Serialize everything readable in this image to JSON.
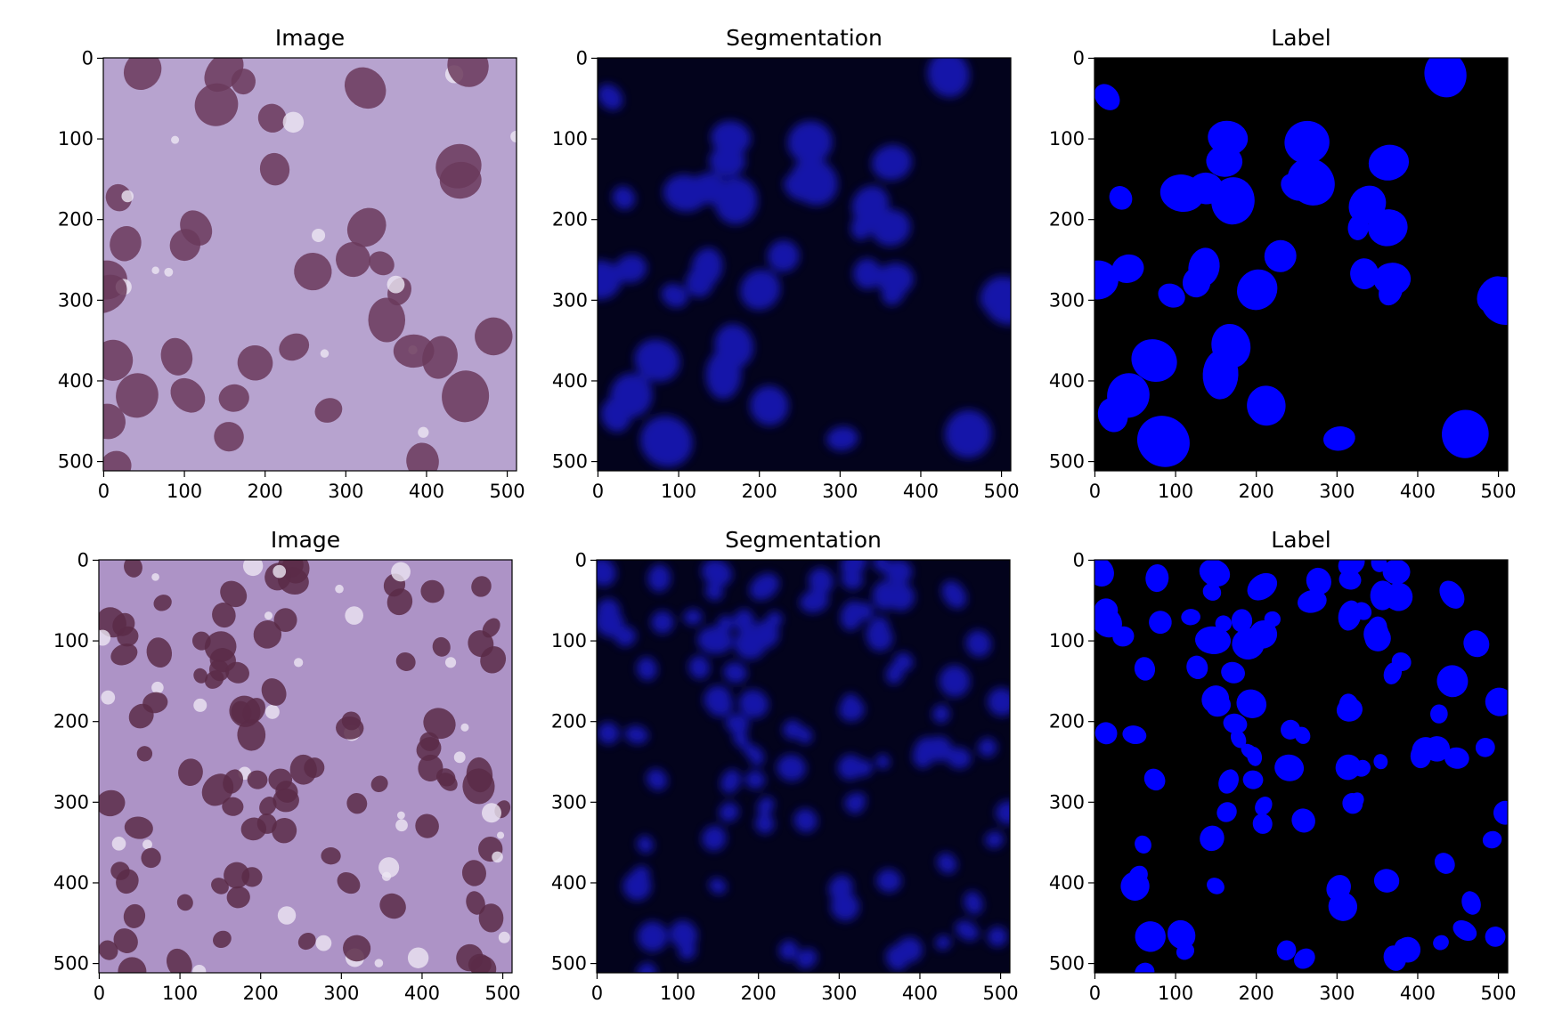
{
  "chart_data": [
    {
      "type": "image",
      "title": "Image",
      "background": "#b7a3cf",
      "color": "#6b3a5c",
      "xlim": [
        -0.5,
        511.5
      ],
      "ylim": [
        511.5,
        -0.5
      ],
      "xticks": [
        0,
        100,
        200,
        300,
        400,
        500
      ],
      "yticks": [
        0,
        100,
        200,
        300,
        400,
        500
      ]
    },
    {
      "type": "image",
      "title": "Segmentation",
      "background": "#03031c",
      "color": "#1a1ad8",
      "xlim": [
        -0.5,
        511.5
      ],
      "ylim": [
        511.5,
        -0.5
      ],
      "xticks": [
        0,
        100,
        200,
        300,
        400,
        500
      ],
      "yticks": [
        0,
        100,
        200,
        300,
        400,
        500
      ]
    },
    {
      "type": "image",
      "title": "Label",
      "background": "#000000",
      "color": "#0000ff",
      "xlim": [
        -0.5,
        511.5
      ],
      "ylim": [
        511.5,
        -0.5
      ],
      "xticks": [
        0,
        100,
        200,
        300,
        400,
        500
      ],
      "yticks": [
        0,
        100,
        200,
        300,
        400,
        500
      ]
    },
    {
      "type": "image",
      "title": "Image",
      "background": "#ad93c6",
      "color": "#5a2c48",
      "xlim": [
        -0.5,
        511.5
      ],
      "ylim": [
        511.5,
        -0.5
      ],
      "xticks": [
        0,
        100,
        200,
        300,
        400,
        500
      ],
      "yticks": [
        0,
        100,
        200,
        300,
        400,
        500
      ]
    },
    {
      "type": "image",
      "title": "Segmentation",
      "background": "#03031c",
      "color": "#1a1ad8",
      "xlim": [
        -0.5,
        511.5
      ],
      "ylim": [
        511.5,
        -0.5
      ],
      "xticks": [
        0,
        100,
        200,
        300,
        400,
        500
      ],
      "yticks": [
        0,
        100,
        200,
        300,
        400,
        500
      ]
    },
    {
      "type": "image",
      "title": "Label",
      "background": "#000000",
      "color": "#0000ff",
      "xlim": [
        -0.5,
        511.5
      ],
      "ylim": [
        511.5,
        -0.5
      ],
      "xticks": [
        0,
        100,
        200,
        300,
        400,
        500
      ],
      "yticks": [
        0,
        100,
        200,
        300,
        400,
        500
      ]
    }
  ]
}
